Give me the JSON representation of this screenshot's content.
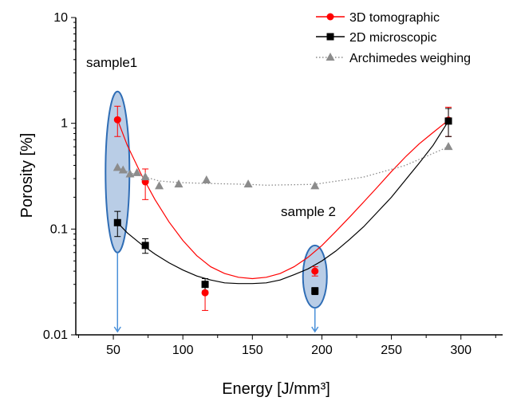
{
  "chart_data": {
    "type": "scatter",
    "xlabel": "Energy [J/mm³]",
    "ylabel": "Porosity [%]",
    "xlim": [
      23,
      330
    ],
    "ylim": [
      0.01,
      10
    ],
    "yscale": "log",
    "xticks": [
      50,
      100,
      150,
      200,
      250,
      300
    ],
    "yticks": [
      0.01,
      0.1,
      1,
      10
    ],
    "ytick_labels": [
      "0.01",
      "0.1",
      "1",
      "10"
    ],
    "grid": false,
    "legend_position": "top-right",
    "series": [
      {
        "name": "3D tomographic",
        "color": "#ff0000",
        "marker": "circle",
        "x": [
          53,
          73,
          116,
          195,
          291
        ],
        "y": [
          1.08,
          0.28,
          0.025,
          0.04,
          1.07
        ],
        "err_low": [
          0.33,
          0.09,
          0.008,
          0.004,
          0.32
        ],
        "err_high": [
          0.37,
          0.09,
          0.007,
          0.004,
          0.35
        ],
        "fit_x": [
          53,
          60,
          70,
          80,
          90,
          100,
          110,
          120,
          130,
          140,
          150,
          160,
          170,
          180,
          190,
          200,
          210,
          220,
          230,
          240,
          250,
          260,
          270,
          280,
          291
        ],
        "fit_y": [
          1.08,
          0.62,
          0.33,
          0.19,
          0.117,
          0.078,
          0.056,
          0.044,
          0.038,
          0.035,
          0.034,
          0.035,
          0.038,
          0.044,
          0.054,
          0.07,
          0.095,
          0.13,
          0.18,
          0.25,
          0.35,
          0.48,
          0.64,
          0.82,
          1.07
        ]
      },
      {
        "name": "2D microscopic",
        "color": "#000000",
        "marker": "square",
        "x": [
          53,
          73,
          116,
          195,
          291
        ],
        "y": [
          0.115,
          0.07,
          0.03,
          0.026,
          1.05
        ],
        "err_low": [
          0.03,
          0.011,
          0.004,
          0.002,
          0.3
        ],
        "err_high": [
          0.032,
          0.011,
          0.004,
          0.002,
          0.33
        ],
        "fit_x": [
          53,
          60,
          70,
          80,
          90,
          100,
          110,
          120,
          130,
          140,
          150,
          160,
          170,
          180,
          190,
          200,
          210,
          220,
          230,
          240,
          250,
          260,
          270,
          280,
          291
        ],
        "fit_y": [
          0.115,
          0.092,
          0.072,
          0.058,
          0.048,
          0.041,
          0.036,
          0.033,
          0.031,
          0.0305,
          0.0305,
          0.031,
          0.033,
          0.037,
          0.042,
          0.05,
          0.062,
          0.08,
          0.105,
          0.145,
          0.2,
          0.29,
          0.42,
          0.62,
          1.05
        ]
      },
      {
        "name": "Archimedes weighing",
        "color": "#8c8c8c",
        "marker": "triangle",
        "line": "dotted",
        "x": [
          53,
          57,
          62,
          67,
          73,
          83,
          97,
          117,
          147,
          195,
          291
        ],
        "y": [
          0.38,
          0.36,
          0.33,
          0.34,
          0.31,
          0.255,
          0.265,
          0.29,
          0.265,
          0.255,
          0.6
        ],
        "fit_x": [
          53,
          62,
          73,
          83,
          97,
          117,
          147,
          160,
          195,
          230,
          260,
          291
        ],
        "fit_y": [
          0.38,
          0.34,
          0.31,
          0.285,
          0.275,
          0.27,
          0.265,
          0.26,
          0.265,
          0.31,
          0.4,
          0.6
        ]
      }
    ],
    "annotations": [
      {
        "text": "sample1"
      },
      {
        "text": "sample 2"
      }
    ],
    "highlights": [
      {
        "label": "sample1",
        "x": 53,
        "y_low": 0.06,
        "y_high": 2.0
      },
      {
        "label": "sample 2",
        "x": 195,
        "y_low": 0.018,
        "y_high": 0.07
      }
    ],
    "arrows": [
      {
        "x": 53,
        "y_from": 0.06,
        "y_to": 0.01
      },
      {
        "x": 195,
        "y_from": 0.018,
        "y_to": 0.01
      }
    ],
    "colors": {
      "highlight_fill": "#b9cde6",
      "highlight_stroke": "#2f6db5",
      "arrow": "#4a90d9"
    }
  }
}
